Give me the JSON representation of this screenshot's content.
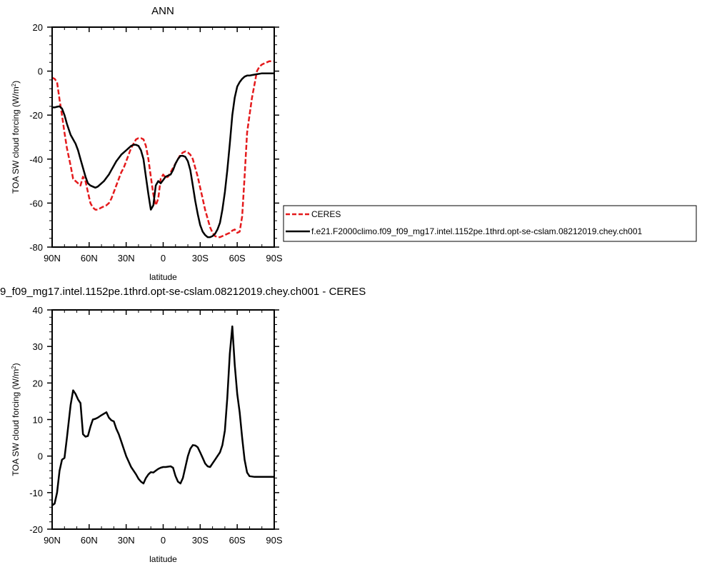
{
  "chart_data": [
    {
      "type": "line",
      "title": "ANN",
      "xlabel": "latitude",
      "ylabel": "TOA SW cloud forcing (W/m",
      "ylabel_sup": "2",
      "ylabel_close": ")",
      "xlim": [
        90,
        -90
      ],
      "ylim": [
        -80,
        20
      ],
      "xticks": [
        {
          "value": 90,
          "label": "90N"
        },
        {
          "value": 60,
          "label": "60N"
        },
        {
          "value": 30,
          "label": "30N"
        },
        {
          "value": 0,
          "label": "0"
        },
        {
          "value": -30,
          "label": "30S"
        },
        {
          "value": -60,
          "label": "60S"
        },
        {
          "value": -90,
          "label": "90S"
        }
      ],
      "yticks": [
        20,
        0,
        -20,
        -40,
        -60,
        -80
      ],
      "legend": "right",
      "series": [
        {
          "name": "CERES",
          "color": "#e41a1c",
          "dash": true,
          "x": [
            90,
            88,
            86,
            84,
            82,
            80,
            78,
            75,
            73,
            71,
            69,
            67,
            65,
            63,
            61,
            59,
            57,
            55,
            53,
            50,
            48,
            46,
            44,
            42,
            40,
            38,
            36,
            34,
            32,
            30,
            28,
            26,
            24,
            22,
            20,
            18,
            16,
            14,
            12,
            10,
            8,
            6,
            4,
            2,
            0,
            -2,
            -4,
            -6,
            -8,
            -10,
            -12,
            -14,
            -16,
            -18,
            -20,
            -22,
            -24,
            -26,
            -28,
            -30,
            -32,
            -34,
            -36,
            -38,
            -40,
            -42,
            -44,
            -46,
            -48,
            -50,
            -52,
            -54,
            -56,
            -58,
            -60,
            -62,
            -64,
            -66,
            -68,
            -70,
            -72,
            -74,
            -76,
            -78,
            -80,
            -82,
            -84,
            -86,
            -88,
            -90
          ],
          "y": [
            -3,
            -3.5,
            -5,
            -13,
            -20,
            -28,
            -35,
            -43,
            -49,
            -50,
            -51,
            -52,
            -48,
            -50,
            -55,
            -60,
            -62,
            -63,
            -63,
            -62,
            -61.5,
            -61,
            -60,
            -58,
            -55,
            -52,
            -49,
            -46,
            -44,
            -41,
            -38,
            -35,
            -33,
            -31,
            -30.5,
            -30.5,
            -31,
            -34,
            -40,
            -48,
            -56,
            -61,
            -58,
            -49,
            -47,
            -48.5,
            -48,
            -46,
            -44,
            -42,
            -40,
            -38,
            -37,
            -36.5,
            -37,
            -38,
            -40,
            -44,
            -48,
            -53,
            -58,
            -63,
            -67,
            -71,
            -73.5,
            -75,
            -75.5,
            -75.5,
            -75,
            -74.5,
            -74,
            -73.5,
            -72.5,
            -72,
            -73.5,
            -73,
            -66,
            -48,
            -28,
            -20,
            -12,
            -6,
            0,
            2,
            3,
            3.5,
            4,
            4.5,
            4.5,
            4.5
          ]
        },
        {
          "name": "f.e21.F2000climo.f09_f09_mg17.intel.1152pe.1thrd.opt-se-cslam.08212019.chey.ch001",
          "color": "#000000",
          "dash": false,
          "x": [
            90,
            88,
            86,
            84,
            82,
            80,
            78,
            75,
            73,
            71,
            69,
            67,
            65,
            63,
            61,
            59,
            57,
            55,
            53,
            50,
            48,
            46,
            44,
            42,
            40,
            38,
            36,
            34,
            32,
            30,
            28,
            26,
            24,
            22,
            20,
            18,
            16,
            14,
            12,
            10,
            8,
            6,
            4,
            2,
            0,
            -2,
            -4,
            -6,
            -8,
            -10,
            -12,
            -14,
            -16,
            -18,
            -20,
            -22,
            -24,
            -26,
            -28,
            -30,
            -32,
            -34,
            -36,
            -38,
            -40,
            -42,
            -44,
            -46,
            -48,
            -50,
            -52,
            -54,
            -56,
            -58,
            -60,
            -62,
            -64,
            -66,
            -68,
            -70,
            -72,
            -74,
            -76,
            -78,
            -80,
            -82,
            -84,
            -86,
            -88,
            -90
          ],
          "y": [
            -16.5,
            -16.5,
            -16.2,
            -16,
            -17,
            -20,
            -24,
            -29,
            -31,
            -33,
            -36,
            -40,
            -44,
            -48,
            -51,
            -52,
            -52.5,
            -53,
            -52.5,
            -51,
            -50,
            -48.5,
            -47,
            -45,
            -43,
            -41,
            -39.5,
            -38,
            -37,
            -36,
            -35,
            -34,
            -33.5,
            -33.5,
            -34,
            -36,
            -40,
            -48,
            -56,
            -63,
            -61,
            -52,
            -50,
            -51,
            -49.5,
            -48,
            -47.5,
            -47,
            -45,
            -42,
            -40,
            -38.5,
            -38.5,
            -39,
            -41,
            -45,
            -52,
            -59,
            -65,
            -70,
            -73,
            -74.5,
            -75.5,
            -75.5,
            -75,
            -74,
            -72,
            -69,
            -63,
            -55,
            -45,
            -33,
            -20,
            -12,
            -7,
            -5,
            -3.5,
            -2.5,
            -2,
            -2,
            -1.8,
            -1.6,
            -1.4,
            -1.2,
            -1,
            -1,
            -1,
            -1,
            -1,
            -1
          ]
        }
      ]
    },
    {
      "type": "line",
      "title": "9_f09_mg17.intel.1152pe.1thrd.opt-se-cslam.08212019.chey.ch001 - CERES",
      "xlabel": "latitude",
      "ylabel": "TOA SW cloud forcing (W/m",
      "ylabel_sup": "2",
      "ylabel_close": ")",
      "xlim": [
        90,
        -90
      ],
      "ylim": [
        -20,
        40
      ],
      "xticks": [
        {
          "value": 90,
          "label": "90N"
        },
        {
          "value": 60,
          "label": "60N"
        },
        {
          "value": 30,
          "label": "30N"
        },
        {
          "value": 0,
          "label": "0"
        },
        {
          "value": -30,
          "label": "30S"
        },
        {
          "value": -60,
          "label": "60S"
        },
        {
          "value": -90,
          "label": "90S"
        }
      ],
      "yticks": [
        40,
        30,
        20,
        10,
        0,
        -10,
        -20
      ],
      "series": [
        {
          "color": "#000000",
          "dash": false,
          "x": [
            90,
            88,
            86,
            84,
            82,
            80,
            78,
            75,
            73,
            71,
            69,
            67,
            65,
            63,
            61,
            59,
            57,
            55,
            53,
            50,
            48,
            46,
            44,
            42,
            40,
            38,
            36,
            34,
            32,
            30,
            28,
            26,
            24,
            22,
            20,
            18,
            16,
            14,
            12,
            10,
            8,
            6,
            4,
            2,
            0,
            -2,
            -4,
            -6,
            -8,
            -10,
            -12,
            -14,
            -16,
            -18,
            -20,
            -22,
            -24,
            -26,
            -28,
            -30,
            -32,
            -34,
            -36,
            -38,
            -40,
            -42,
            -44,
            -46,
            -48,
            -50,
            -52,
            -54,
            -56,
            -58,
            -60,
            -62,
            -64,
            -66,
            -68,
            -70,
            -72,
            -74,
            -76,
            -78,
            -80,
            -82,
            -84,
            -86,
            -88,
            -90
          ],
          "y": [
            -13.5,
            -13,
            -10,
            -4,
            -1,
            -0.5,
            5,
            14,
            18,
            17,
            15.5,
            14.5,
            6,
            5.3,
            5.5,
            8,
            10,
            10.2,
            10.5,
            11.2,
            11.6,
            12,
            10.5,
            9.8,
            9.5,
            7.5,
            6,
            4,
            2,
            0,
            -1.5,
            -3,
            -4,
            -5,
            -6.2,
            -7.0,
            -7.5,
            -6.0,
            -5.0,
            -4.4,
            -4.5,
            -4.0,
            -3.5,
            -3.2,
            -3.0,
            -3.0,
            -2.9,
            -2.8,
            -3.2,
            -5.5,
            -7.0,
            -7.5,
            -6.0,
            -3.0,
            0,
            2.0,
            3.0,
            2.9,
            2.4,
            1.0,
            -0.5,
            -2.0,
            -2.8,
            -3.0,
            -2.0,
            -1.0,
            0.0,
            1.0,
            3.0,
            7.0,
            16.0,
            28.0,
            35.5,
            25.0,
            17.0,
            12.0,
            5.0,
            -1.0,
            -4.5,
            -5.5,
            -5.6,
            -5.7,
            -5.7,
            -5.7,
            -5.7,
            -5.7,
            -5.7,
            -5.7,
            -5.7,
            -5.7
          ]
        }
      ]
    }
  ]
}
